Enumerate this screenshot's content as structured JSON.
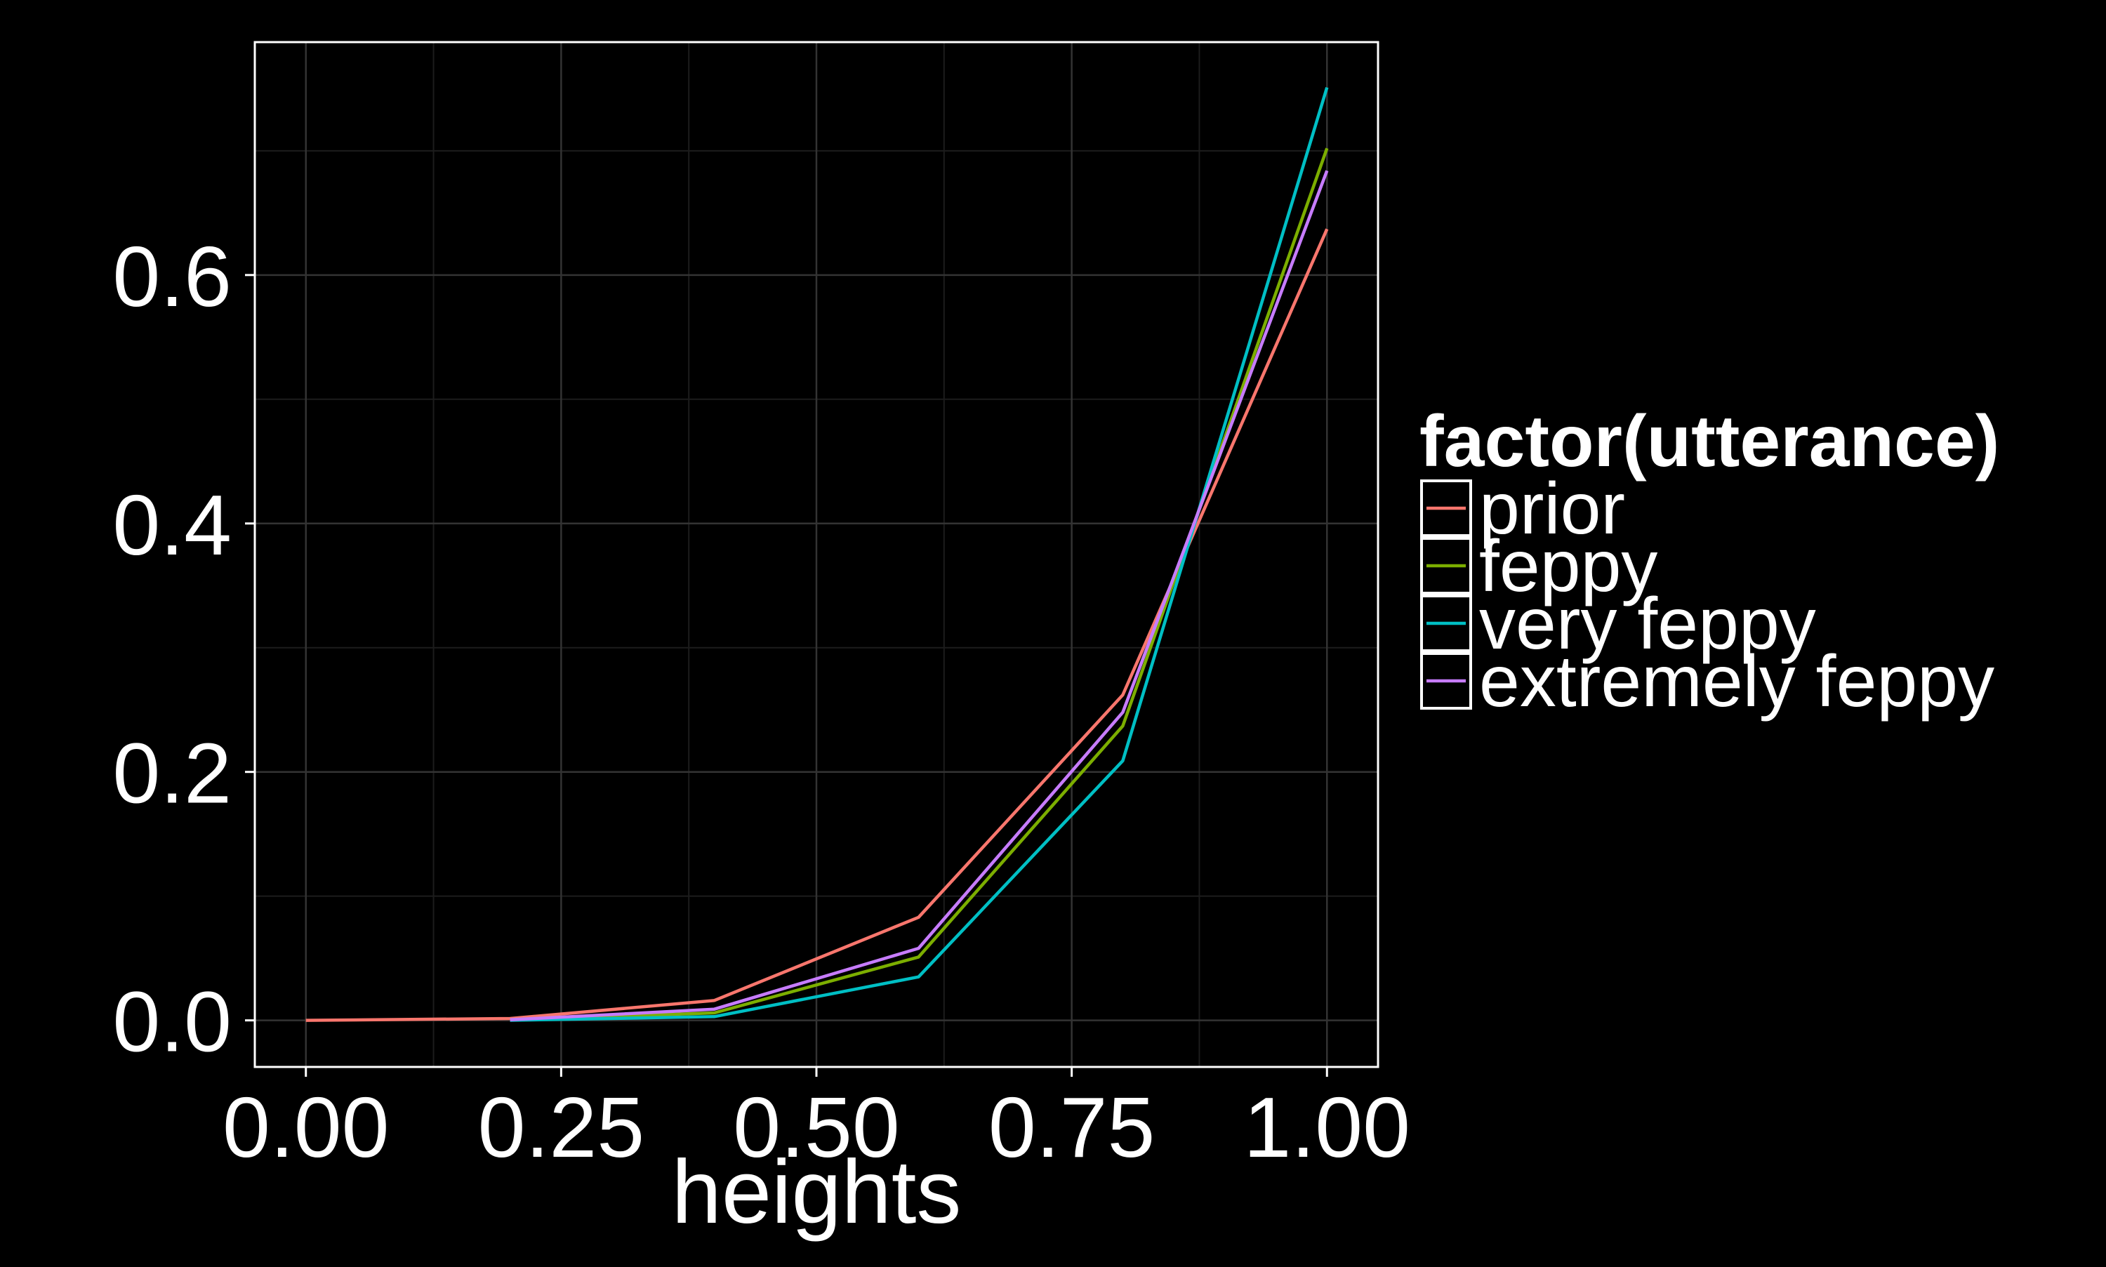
{
  "chart_data": {
    "type": "line",
    "title": "",
    "xlabel": "heights",
    "ylabel": "",
    "xlim": [
      -0.05,
      1.05
    ],
    "ylim": [
      -0.0375,
      0.7875
    ],
    "x_ticks": [
      0.0,
      0.25,
      0.5,
      0.75,
      1.0
    ],
    "x_tick_labels": [
      "0.00",
      "0.25",
      "0.50",
      "0.75",
      "1.00"
    ],
    "y_ticks": [
      0.0,
      0.2,
      0.4,
      0.6
    ],
    "y_tick_labels": [
      "0.0",
      "0.2",
      "0.4",
      "0.6"
    ],
    "grid": true,
    "legend": {
      "title": "factor(utterance)",
      "position": "right"
    },
    "series": [
      {
        "name": "prior",
        "color": "#F8766D",
        "points": [
          [
            0.0,
            0.0
          ],
          [
            0.2,
            0.0015
          ],
          [
            0.4,
            0.016
          ],
          [
            0.6,
            0.083
          ],
          [
            0.8,
            0.262
          ],
          [
            1.0,
            0.637
          ]
        ]
      },
      {
        "name": "feppy",
        "color": "#7CAE00",
        "points": [
          [
            0.2,
            0.0003
          ],
          [
            0.4,
            0.006
          ],
          [
            0.6,
            0.051
          ],
          [
            0.8,
            0.237
          ],
          [
            1.0,
            0.702
          ]
        ]
      },
      {
        "name": "very feppy",
        "color": "#00BFC4",
        "points": [
          [
            0.2,
            0.0001
          ],
          [
            0.4,
            0.003
          ],
          [
            0.6,
            0.035
          ],
          [
            0.8,
            0.209
          ],
          [
            1.0,
            0.751
          ]
        ]
      },
      {
        "name": "extremely feppy",
        "color": "#C77CFF",
        "points": [
          [
            0.2,
            0.0005
          ],
          [
            0.4,
            0.009
          ],
          [
            0.6,
            0.058
          ],
          [
            0.8,
            0.248
          ],
          [
            1.0,
            0.684
          ]
        ]
      }
    ]
  }
}
